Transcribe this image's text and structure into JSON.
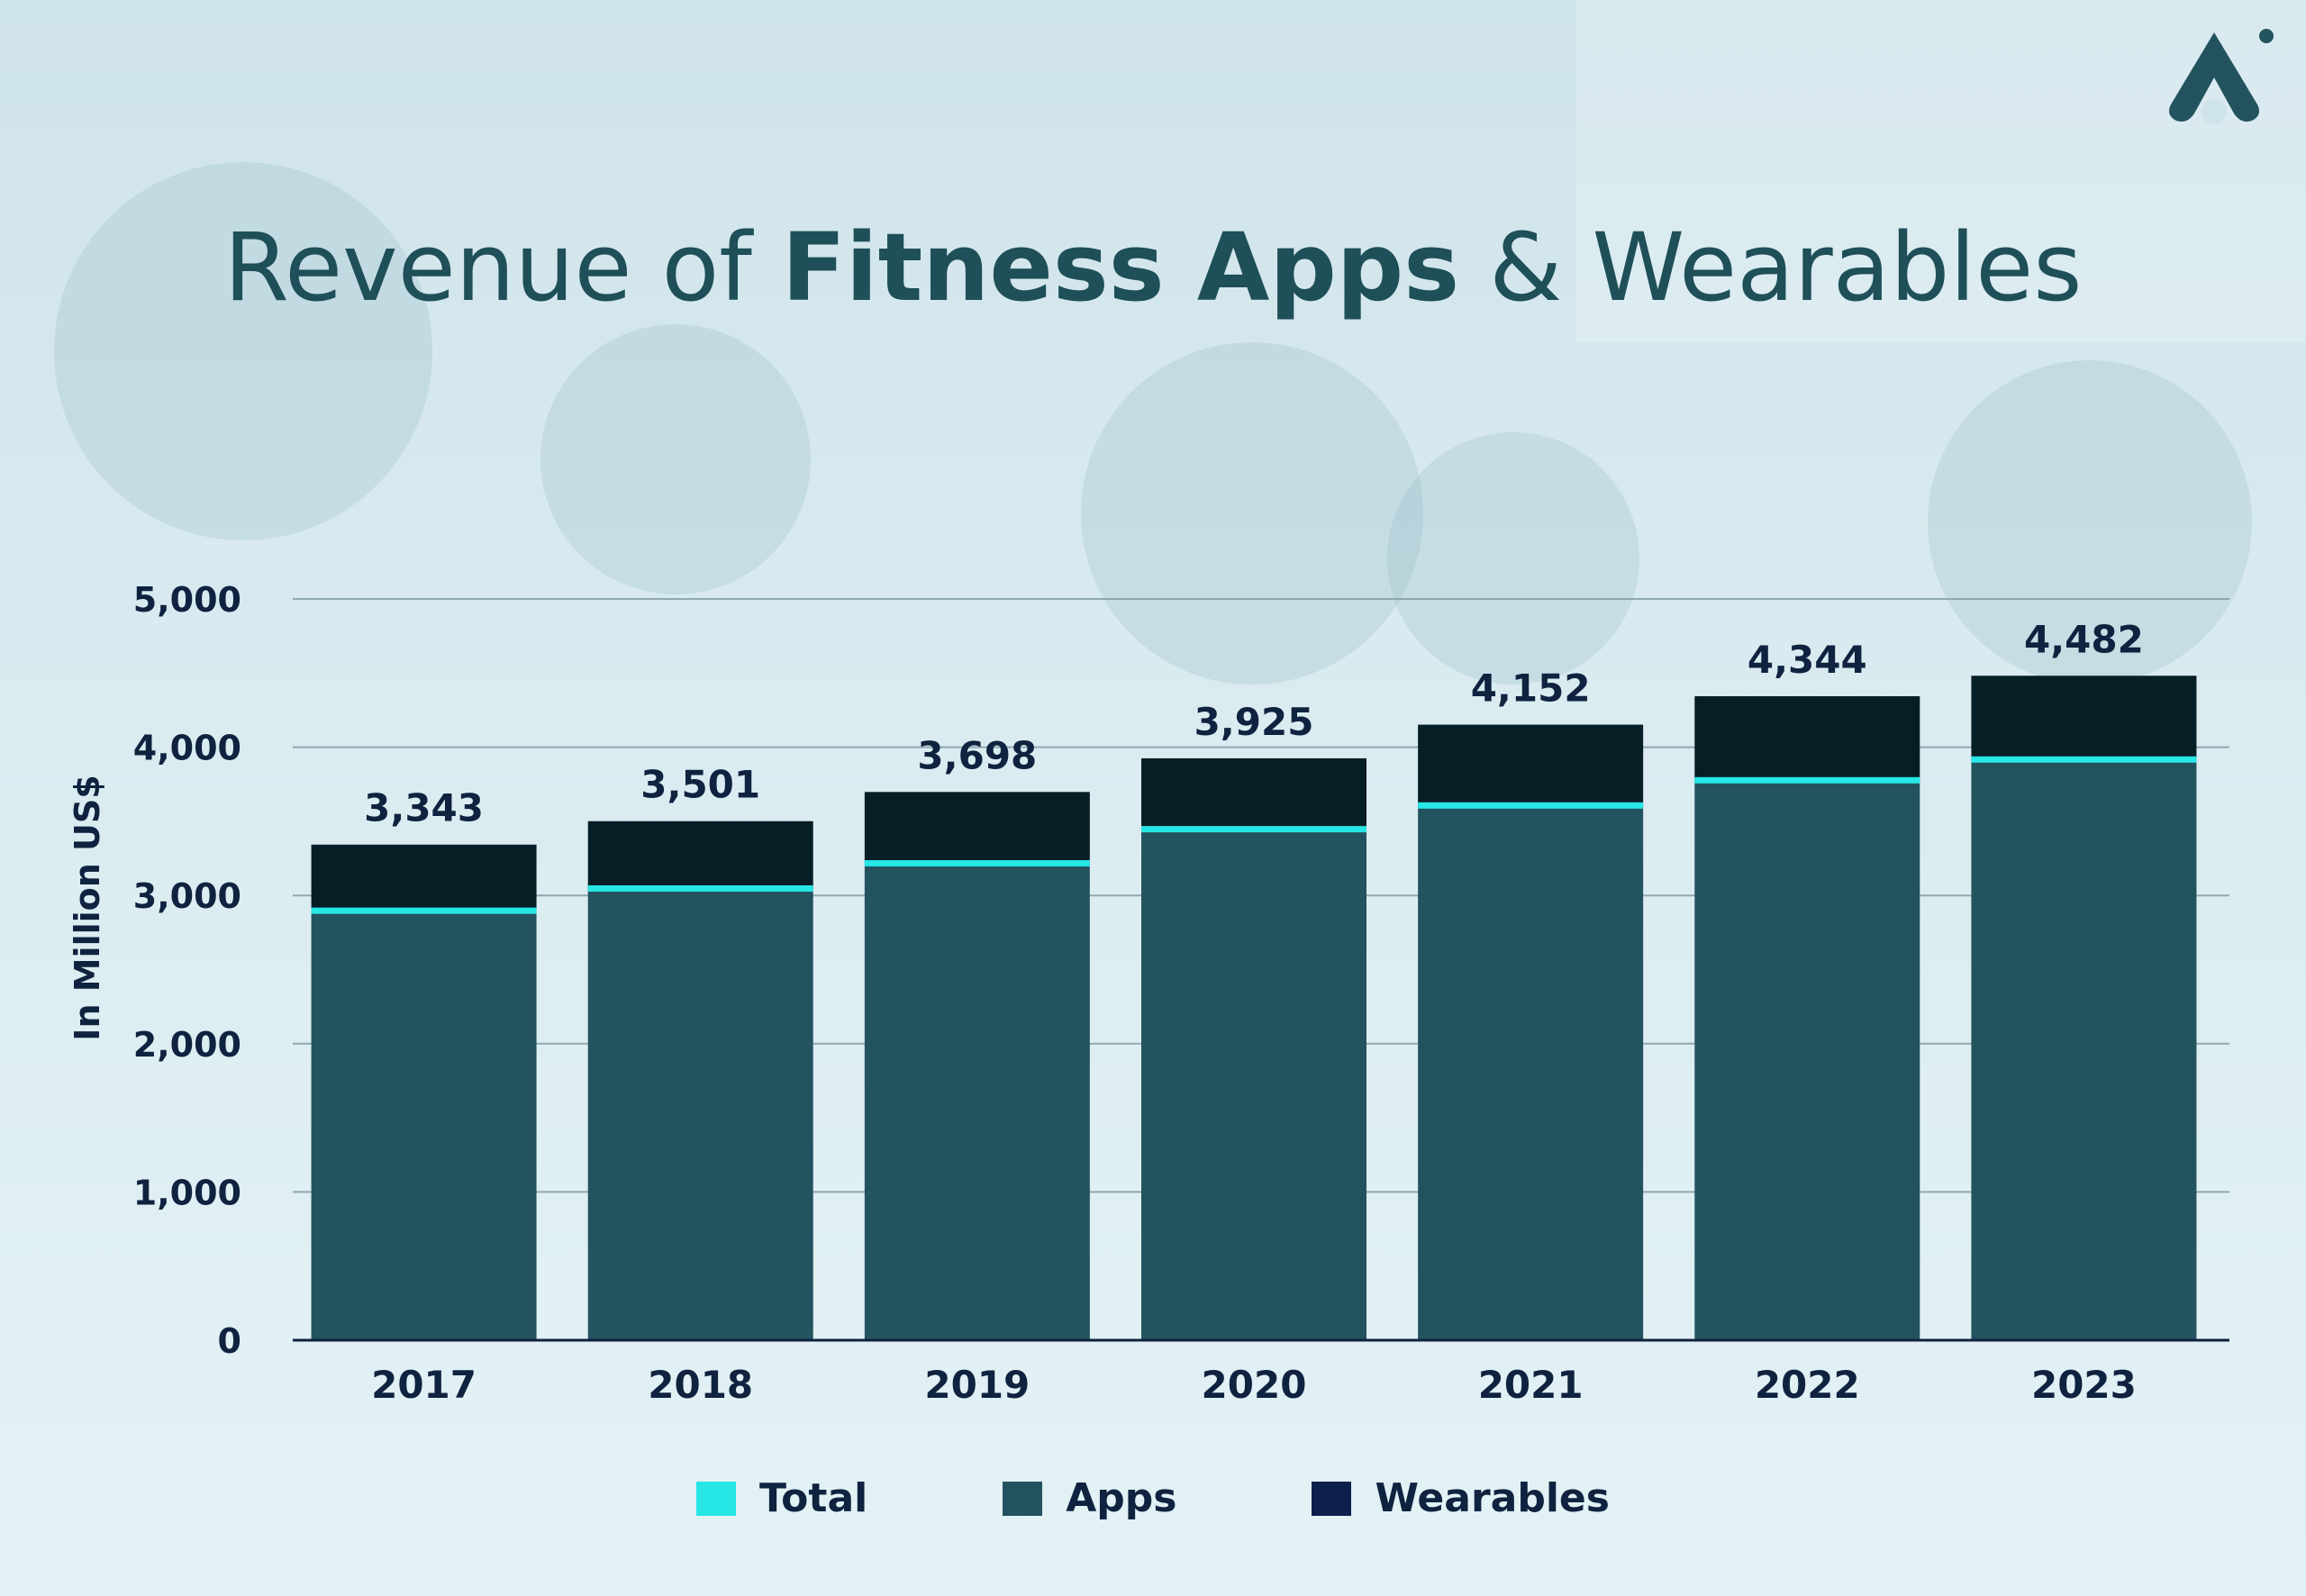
{
  "title": {
    "part1": "Revenue of ",
    "part2": "Fitness Apps",
    "part3": " & Wearables"
  },
  "colors": {
    "apps": "#23535f",
    "wearables": "#061e26",
    "total": "#27e6e6",
    "text": "#0f2340",
    "title": "#1f4f59",
    "grid": "#8fa9b1",
    "wearables_legend": "#0c1f4d"
  },
  "logo_icon": "brand-logo-icon",
  "chart_data": {
    "type": "bar",
    "stacked": true,
    "categories": [
      "2017",
      "2018",
      "2019",
      "2020",
      "2021",
      "2022",
      "2023"
    ],
    "series": [
      {
        "name": "Apps",
        "values": [
          2900,
          3050,
          3220,
          3450,
          3610,
          3780,
          3920
        ]
      },
      {
        "name": "Wearables",
        "values": [
          443,
          451,
          478,
          475,
          542,
          564,
          562
        ]
      }
    ],
    "totals": [
      3343,
      3501,
      3698,
      3925,
      4152,
      4344,
      4482
    ],
    "total_labels": [
      "3,343",
      "3,501",
      "3,698",
      "3,925",
      "4,152",
      "4,344",
      "4,482"
    ],
    "ylabel": "In Million US$",
    "ylim": [
      0,
      5000
    ],
    "yticks": [
      0,
      1000,
      2000,
      3000,
      4000,
      5000
    ],
    "ytick_labels": [
      "0",
      "1,000",
      "2,000",
      "3,000",
      "4,000",
      "5,000"
    ],
    "grid": true,
    "legend_position": "bottom-center",
    "legend": [
      {
        "name": "Total",
        "color": "#27e6e6"
      },
      {
        "name": "Apps",
        "color": "#23535f"
      },
      {
        "name": "Wearables",
        "color": "#0c1f4d"
      }
    ]
  }
}
